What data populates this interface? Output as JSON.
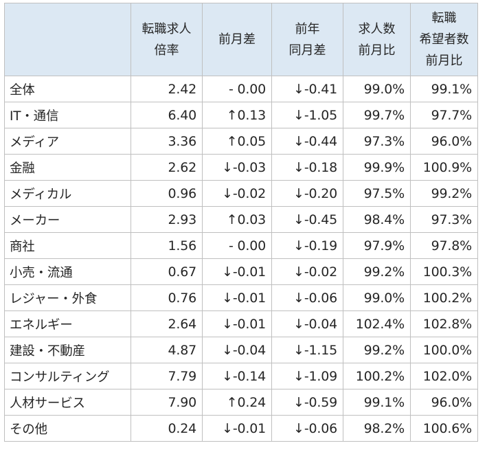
{
  "headers": {
    "col1": [
      "転職求人",
      "倍率"
    ],
    "col2": [
      "前月差"
    ],
    "col3": [
      "前年",
      "同月差"
    ],
    "col4": [
      "求人数",
      "前月比"
    ],
    "col5": [
      "転職",
      "希望者数",
      "前月比"
    ]
  },
  "rows": [
    {
      "label": "全体",
      "ratio": "2.42",
      "mom": "- 0.00",
      "yoy": "↓-0.41",
      "jobs": "99.0%",
      "seekers": "99.1%"
    },
    {
      "label": "IT・通信",
      "ratio": "6.40",
      "mom": "↑0.13",
      "yoy": "↓-1.05",
      "jobs": "99.7%",
      "seekers": "97.7%"
    },
    {
      "label": "メディア",
      "ratio": "3.36",
      "mom": "↑0.05",
      "yoy": "↓-0.44",
      "jobs": "97.3%",
      "seekers": "96.0%"
    },
    {
      "label": "金融",
      "ratio": "2.62",
      "mom": "↓-0.03",
      "yoy": "↓-0.18",
      "jobs": "99.9%",
      "seekers": "100.9%"
    },
    {
      "label": "メディカル",
      "ratio": "0.96",
      "mom": "↓-0.02",
      "yoy": "↓-0.20",
      "jobs": "97.5%",
      "seekers": "99.2%"
    },
    {
      "label": "メーカー",
      "ratio": "2.93",
      "mom": "↑0.03",
      "yoy": "↓-0.45",
      "jobs": "98.4%",
      "seekers": "97.3%"
    },
    {
      "label": "商社",
      "ratio": "1.56",
      "mom": "- 0.00",
      "yoy": "↓-0.19",
      "jobs": "97.9%",
      "seekers": "97.8%"
    },
    {
      "label": "小売・流通",
      "ratio": "0.67",
      "mom": "↓-0.01",
      "yoy": "↓-0.02",
      "jobs": "99.2%",
      "seekers": "100.3%"
    },
    {
      "label": "レジャー・外食",
      "ratio": "0.76",
      "mom": "↓-0.01",
      "yoy": "↓-0.06",
      "jobs": "99.0%",
      "seekers": "100.2%"
    },
    {
      "label": "エネルギー",
      "ratio": "2.64",
      "mom": "↓-0.01",
      "yoy": "↓-0.04",
      "jobs": "102.4%",
      "seekers": "102.8%"
    },
    {
      "label": "建設・不動産",
      "ratio": "4.87",
      "mom": "↓-0.04",
      "yoy": "↓-1.15",
      "jobs": "99.2%",
      "seekers": "100.0%"
    },
    {
      "label": "コンサルティング",
      "ratio": "7.79",
      "mom": "↓-0.14",
      "yoy": "↓-1.09",
      "jobs": "100.2%",
      "seekers": "102.0%"
    },
    {
      "label": "人材サービス",
      "ratio": "7.90",
      "mom": "↑0.24",
      "yoy": "↓-0.59",
      "jobs": "99.1%",
      "seekers": "96.0%"
    },
    {
      "label": "その他",
      "ratio": "0.24",
      "mom": "↓-0.01",
      "yoy": "↓-0.06",
      "jobs": "98.2%",
      "seekers": "100.6%"
    }
  ]
}
